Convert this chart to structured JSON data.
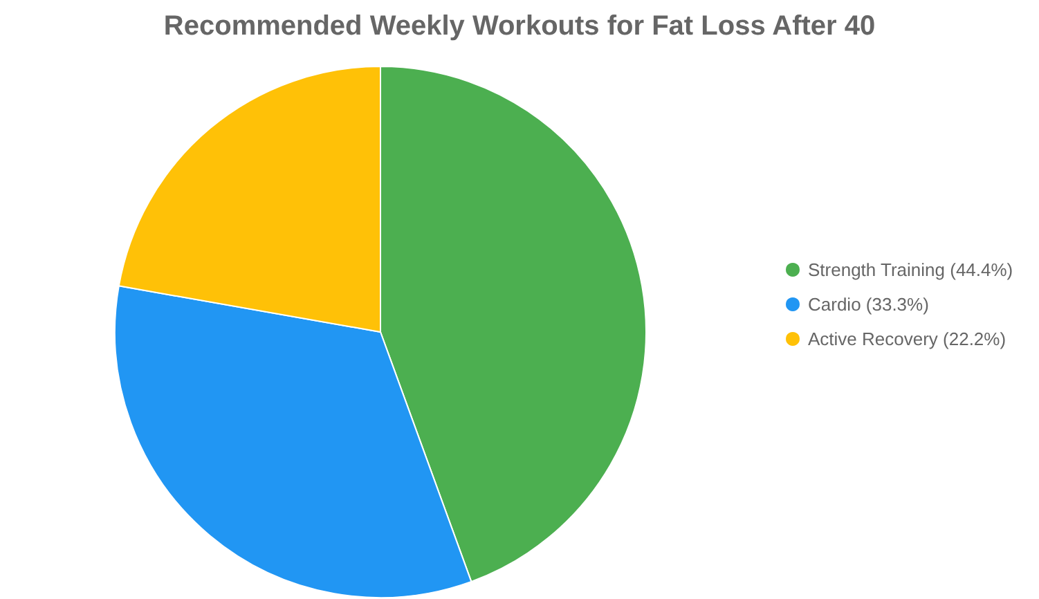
{
  "chart_data": {
    "type": "pie",
    "title": "Recommended Weekly Workouts for Fat Loss After 40",
    "categories": [
      "Strength Training (44.4%)",
      "Cardio (33.3%)",
      "Active Recovery (22.2%)"
    ],
    "values": [
      44.4,
      33.3,
      22.2
    ],
    "colors": [
      "#4caf50",
      "#2196f3",
      "#ffc107"
    ],
    "legend": "right"
  }
}
